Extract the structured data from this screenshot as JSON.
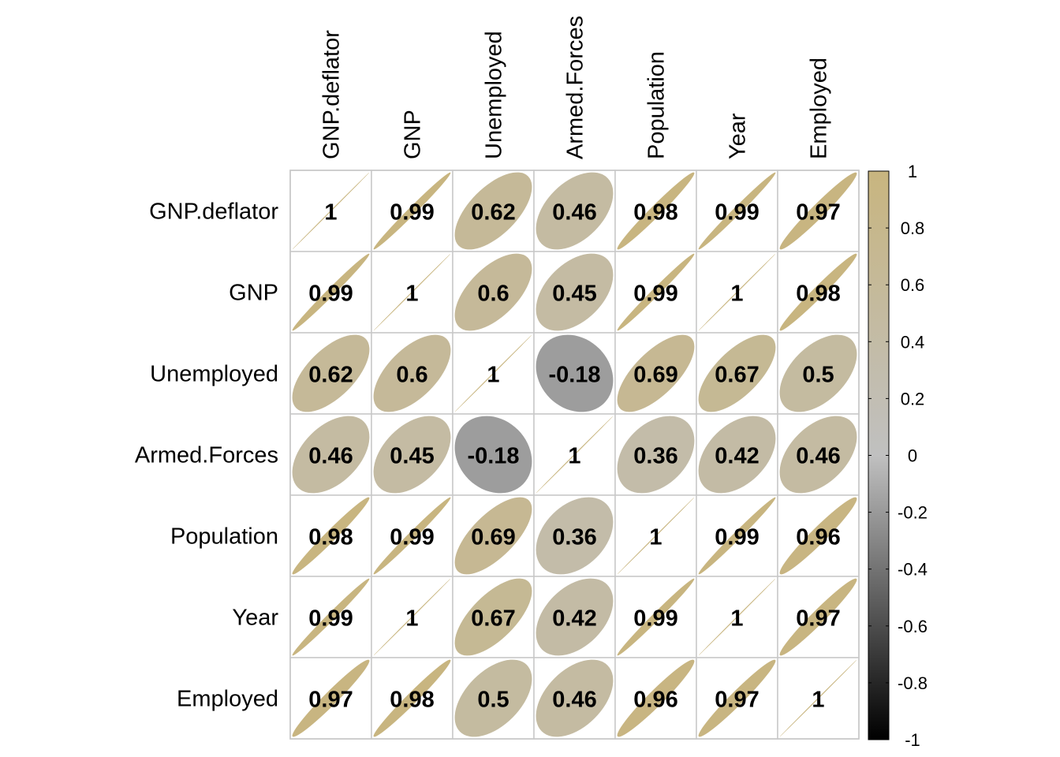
{
  "chart_data": {
    "type": "heatmap",
    "subtype": "correlation-matrix-ellipse",
    "title": "",
    "variables": [
      "GNP.deflator",
      "GNP",
      "Unemployed",
      "Armed.Forces",
      "Population",
      "Year",
      "Employed"
    ],
    "values": [
      [
        1,
        0.99,
        0.62,
        0.46,
        0.98,
        0.99,
        0.97
      ],
      [
        0.99,
        1,
        0.6,
        0.45,
        0.99,
        1,
        0.98
      ],
      [
        0.62,
        0.6,
        1,
        -0.18,
        0.69,
        0.67,
        0.5
      ],
      [
        0.46,
        0.45,
        -0.18,
        1,
        0.36,
        0.42,
        0.46
      ],
      [
        0.98,
        0.99,
        0.69,
        0.36,
        1,
        0.99,
        0.96
      ],
      [
        0.99,
        1,
        0.67,
        0.42,
        0.99,
        1,
        0.97
      ],
      [
        0.97,
        0.98,
        0.5,
        0.46,
        0.96,
        0.97,
        1
      ]
    ],
    "labels": [
      [
        "1",
        "0.99",
        "0.62",
        "0.46",
        "0.98",
        "0.99",
        "0.97"
      ],
      [
        "0.99",
        "1",
        "0.6",
        "0.45",
        "0.99",
        "1",
        "0.98"
      ],
      [
        "0.62",
        "0.6",
        "1",
        "-0.18",
        "0.69",
        "0.67",
        "0.5"
      ],
      [
        "0.46",
        "0.45",
        "-0.18",
        "1",
        "0.36",
        "0.42",
        "0.46"
      ],
      [
        "0.98",
        "0.99",
        "0.69",
        "0.36",
        "1",
        "0.99",
        "0.96"
      ],
      [
        "0.99",
        "1",
        "0.67",
        "0.42",
        "0.99",
        "1",
        "0.97"
      ],
      [
        "0.97",
        "0.98",
        "0.5",
        "0.46",
        "0.96",
        "0.97",
        "1"
      ]
    ],
    "color_scale": {
      "range": [
        -1,
        1
      ],
      "stops": [
        "#000000",
        "#c0c0c0",
        "#c8b57f"
      ],
      "ticks": [
        "1",
        "0.8",
        "0.6",
        "0.4",
        "0.2",
        "0",
        "-0.2",
        "-0.4",
        "-0.6",
        "-0.8",
        "-1"
      ],
      "tick_values": [
        1,
        0.8,
        0.6,
        0.4,
        0.2,
        0,
        -0.2,
        -0.4,
        -0.6,
        -0.8,
        -1
      ],
      "placement": "right"
    },
    "grid": true,
    "grid_color": "#c8c8c8"
  }
}
